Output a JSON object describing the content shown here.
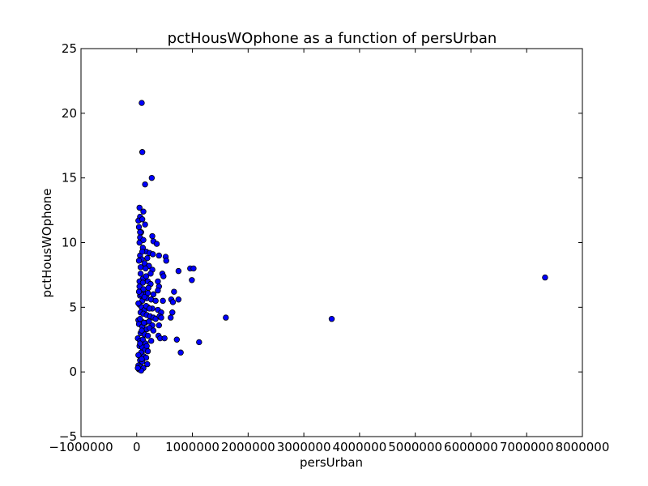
{
  "chart_data": {
    "type": "scatter",
    "title": "pctHousWOphone as a function of persUrban",
    "xlabel": "persUrban",
    "ylabel": "pctHousWOphone",
    "xlim": [
      -1000000,
      8000000
    ],
    "ylim": [
      -5,
      25
    ],
    "xticks": [
      -1000000,
      0,
      1000000,
      2000000,
      3000000,
      4000000,
      5000000,
      6000000,
      7000000,
      8000000
    ],
    "xtick_labels": [
      "−1000000",
      "0",
      "1000000",
      "2000000",
      "3000000",
      "4000000",
      "5000000",
      "6000000",
      "7000000",
      "8000000"
    ],
    "yticks": [
      -5,
      0,
      5,
      10,
      15,
      20,
      25
    ],
    "ytick_labels": [
      "−5",
      "0",
      "5",
      "10",
      "15",
      "20",
      "25"
    ],
    "grid": false,
    "marker_color": "#0000ff",
    "marker_edge_color": "#000000",
    "points": [
      [
        90000,
        20.8
      ],
      [
        100000,
        17.0
      ],
      [
        270000,
        15.0
      ],
      [
        150000,
        14.5
      ],
      [
        50000,
        12.7
      ],
      [
        120000,
        12.4
      ],
      [
        60000,
        12.0
      ],
      [
        30000,
        11.7
      ],
      [
        100000,
        11.8
      ],
      [
        150000,
        11.4
      ],
      [
        40000,
        11.2
      ],
      [
        80000,
        10.8
      ],
      [
        60000,
        10.4
      ],
      [
        280000,
        10.5
      ],
      [
        300000,
        10.1
      ],
      [
        360000,
        9.9
      ],
      [
        50000,
        10.0
      ],
      [
        110000,
        9.6
      ],
      [
        170000,
        9.3
      ],
      [
        230000,
        9.2
      ],
      [
        290000,
        9.1
      ],
      [
        400000,
        9.0
      ],
      [
        520000,
        8.9
      ],
      [
        530000,
        8.6
      ],
      [
        60000,
        9.0
      ],
      [
        90000,
        8.7
      ],
      [
        140000,
        8.4
      ],
      [
        190000,
        8.8
      ],
      [
        220000,
        8.2
      ],
      [
        280000,
        7.9
      ],
      [
        960000,
        8.0
      ],
      [
        1020000,
        8.0
      ],
      [
        750000,
        7.8
      ],
      [
        460000,
        7.6
      ],
      [
        480000,
        7.4
      ],
      [
        990000,
        7.1
      ],
      [
        7330000,
        7.3
      ],
      [
        70000,
        7.6
      ],
      [
        110000,
        7.2
      ],
      [
        170000,
        7.4
      ],
      [
        200000,
        7.0
      ],
      [
        250000,
        6.8
      ],
      [
        380000,
        7.0
      ],
      [
        400000,
        6.6
      ],
      [
        380000,
        6.3
      ],
      [
        670000,
        6.2
      ],
      [
        50000,
        6.6
      ],
      [
        120000,
        6.4
      ],
      [
        150000,
        6.0
      ],
      [
        200000,
        6.1
      ],
      [
        300000,
        6.0
      ],
      [
        60000,
        5.9
      ],
      [
        100000,
        5.5
      ],
      [
        180000,
        5.7
      ],
      [
        260000,
        5.6
      ],
      [
        340000,
        5.5
      ],
      [
        470000,
        5.5
      ],
      [
        620000,
        5.6
      ],
      [
        650000,
        5.4
      ],
      [
        750000,
        5.6
      ],
      [
        50000,
        5.2
      ],
      [
        90000,
        5.0
      ],
      [
        140000,
        4.8
      ],
      [
        200000,
        5.0
      ],
      [
        280000,
        4.9
      ],
      [
        380000,
        4.8
      ],
      [
        440000,
        4.6
      ],
      [
        640000,
        4.6
      ],
      [
        70000,
        4.6
      ],
      [
        120000,
        4.5
      ],
      [
        180000,
        4.4
      ],
      [
        240000,
        4.3
      ],
      [
        300000,
        4.2
      ],
      [
        340000,
        4.1
      ],
      [
        410000,
        4.3
      ],
      [
        440000,
        4.2
      ],
      [
        610000,
        4.2
      ],
      [
        1600000,
        4.2
      ],
      [
        3500000,
        4.1
      ],
      [
        30000,
        4.0
      ],
      [
        90000,
        3.9
      ],
      [
        150000,
        3.8
      ],
      [
        220000,
        3.9
      ],
      [
        280000,
        3.6
      ],
      [
        400000,
        3.6
      ],
      [
        40000,
        3.7
      ],
      [
        100000,
        3.5
      ],
      [
        180000,
        3.3
      ],
      [
        230000,
        3.4
      ],
      [
        300000,
        3.2
      ],
      [
        70000,
        3.0
      ],
      [
        140000,
        2.9
      ],
      [
        200000,
        2.8
      ],
      [
        390000,
        2.8
      ],
      [
        420000,
        2.6
      ],
      [
        500000,
        2.6
      ],
      [
        720000,
        2.5
      ],
      [
        20000,
        2.6
      ],
      [
        60000,
        2.4
      ],
      [
        110000,
        2.5
      ],
      [
        160000,
        2.2
      ],
      [
        1120000,
        2.3
      ],
      [
        50000,
        2.0
      ],
      [
        100000,
        1.9
      ],
      [
        150000,
        1.7
      ],
      [
        200000,
        1.6
      ],
      [
        790000,
        1.5
      ],
      [
        80000,
        1.5
      ],
      [
        130000,
        1.2
      ],
      [
        170000,
        1.1
      ],
      [
        60000,
        0.9
      ],
      [
        100000,
        0.8
      ],
      [
        190000,
        0.6
      ],
      [
        30000,
        0.5
      ],
      [
        70000,
        0.4
      ],
      [
        120000,
        0.3
      ],
      [
        40000,
        0.2
      ],
      [
        80000,
        0.1
      ],
      [
        20000,
        0.3
      ],
      [
        30000,
        1.3
      ],
      [
        60000,
        2.2
      ],
      [
        90000,
        3.2
      ],
      [
        60000,
        4.1
      ],
      [
        80000,
        6.0
      ],
      [
        50000,
        7.0
      ],
      [
        70000,
        8.1
      ],
      [
        40000,
        8.6
      ],
      [
        100000,
        9.3
      ],
      [
        120000,
        10.2
      ],
      [
        60000,
        10.8
      ],
      [
        30000,
        5.3
      ],
      [
        40000,
        6.2
      ],
      [
        130000,
        3.8
      ],
      [
        170000,
        5.1
      ],
      [
        210000,
        6.5
      ],
      [
        250000,
        7.6
      ],
      [
        160000,
        8.0
      ],
      [
        110000,
        6.9
      ],
      [
        140000,
        5.8
      ],
      [
        230000,
        4.9
      ],
      [
        180000,
        2.0
      ],
      [
        90000,
        1.0
      ],
      [
        260000,
        2.4
      ]
    ]
  }
}
